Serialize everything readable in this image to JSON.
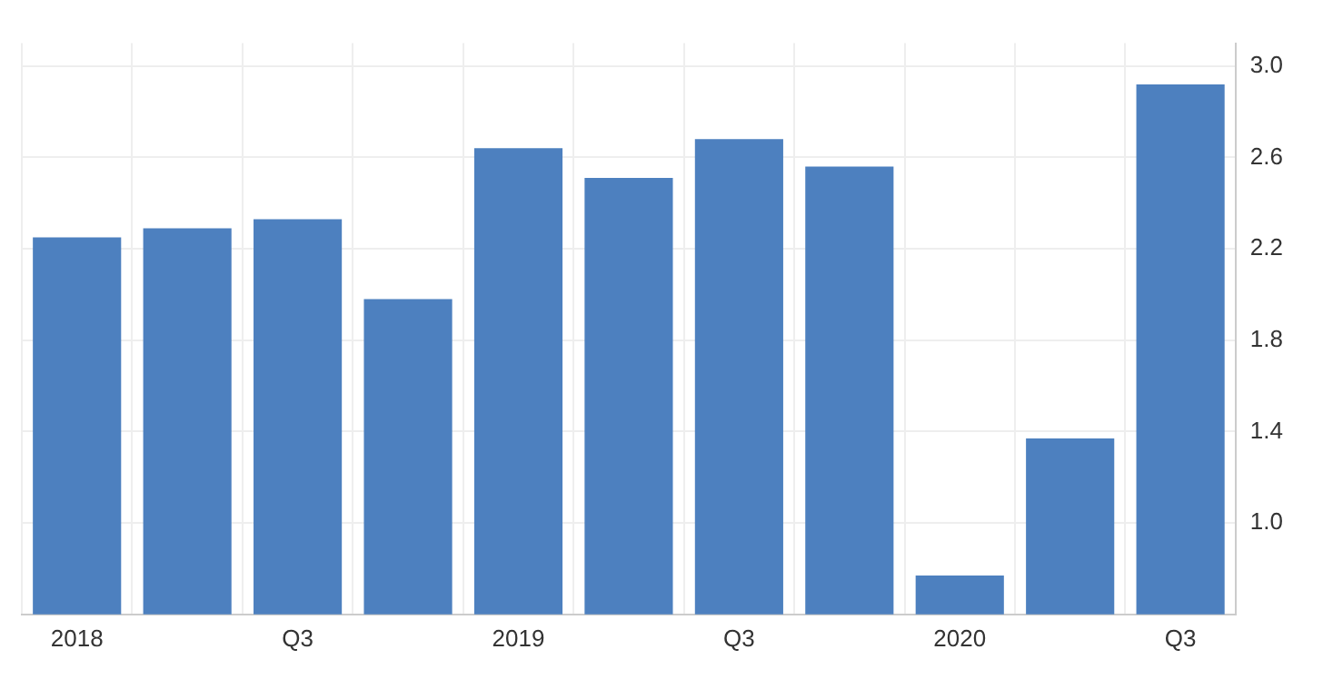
{
  "chart_data": {
    "type": "bar",
    "categories": [
      "2018",
      null,
      "Q3",
      null,
      "2019",
      null,
      "Q3",
      null,
      "2020",
      null,
      "Q3"
    ],
    "values": [
      2.25,
      2.29,
      2.33,
      1.98,
      2.64,
      2.51,
      2.68,
      2.56,
      0.77,
      1.37,
      2.92
    ],
    "color": "#4d80bf",
    "ylim": [
      0.6,
      3.1
    ],
    "yticks": [
      {
        "value": 1,
        "label": "1.0"
      },
      {
        "value": 1.4,
        "label": "1.4"
      },
      {
        "value": 1.8,
        "label": "1.8"
      },
      {
        "value": 2.2,
        "label": "2.2"
      },
      {
        "value": 2.6,
        "label": "2.6"
      },
      {
        "value": 3,
        "label": "3.0"
      }
    ],
    "grid": true
  }
}
